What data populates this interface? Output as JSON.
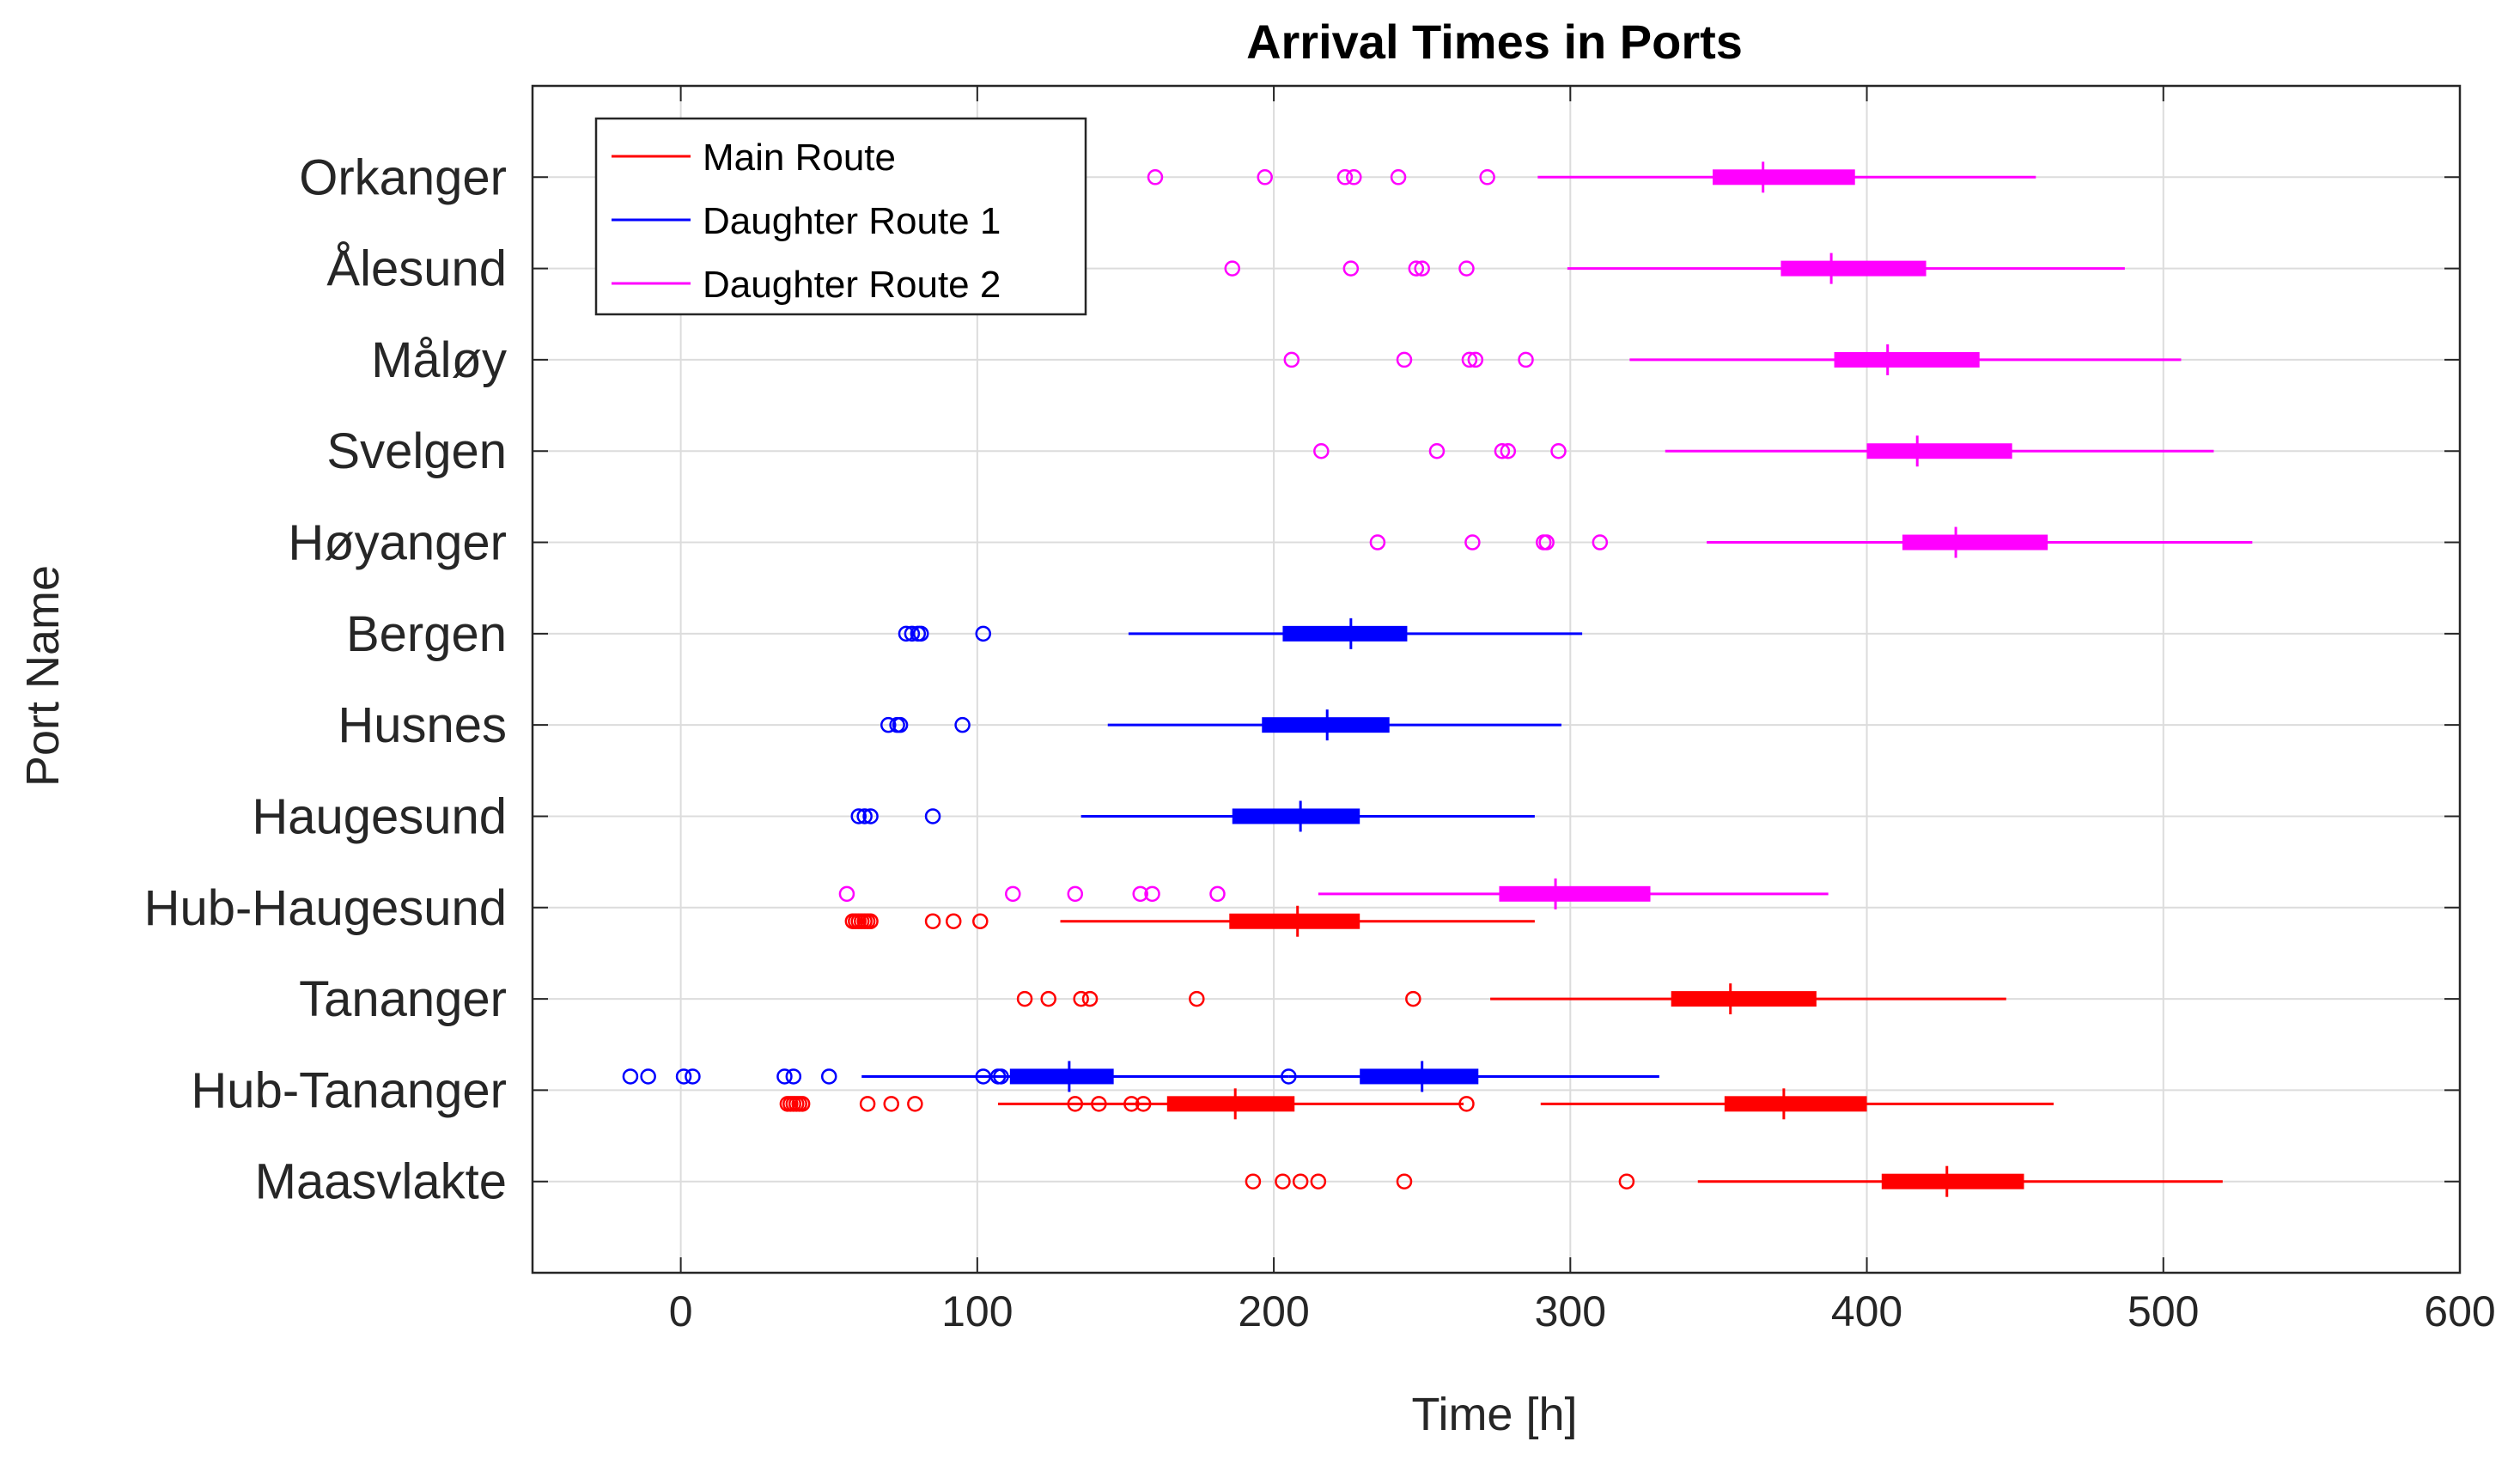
{
  "chart_data": {
    "type": "boxplot-horizontal",
    "title": "Arrival Times in Ports",
    "xlabel": "Time [h]",
    "ylabel": "Port Name",
    "xlim": [
      -50,
      600
    ],
    "xticks": [
      0,
      100,
      200,
      300,
      400,
      500,
      600
    ],
    "grid": true,
    "legend_position": "top-left",
    "categories": [
      "Orkanger",
      "Ålesund",
      "Måløy",
      "Svelgen",
      "Høyanger",
      "Bergen",
      "Husnes",
      "Haugesund",
      "Hub-Haugesund",
      "Tananger",
      "Hub-Tananger",
      "Maasvlakte"
    ],
    "series": [
      {
        "name": "Main Route",
        "color": "#ff0000",
        "boxes": [
          {
            "category": "Hub-Haugesund",
            "offset": 0.15,
            "whisker_low": 128,
            "q1": 185,
            "median": 208,
            "q3": 229,
            "whisker_high": 288,
            "outliers": [
              58,
              59,
              60,
              61,
              62,
              63,
              64,
              85,
              92,
              101
            ]
          },
          {
            "category": "Tananger",
            "offset": 0,
            "whisker_low": 273,
            "q1": 334,
            "median": 354,
            "q3": 383,
            "whisker_high": 447,
            "outliers": [
              116,
              124,
              135,
              138,
              174,
              247
            ]
          },
          {
            "category": "Hub-Tananger",
            "offset": 0.15,
            "whisker_low": 107,
            "q1": 164,
            "median": 187,
            "q3": 207,
            "whisker_high": 264,
            "outliers": [
              36,
              37,
              38,
              39,
              40,
              41,
              63,
              71,
              79,
              133,
              141,
              152,
              156,
              265
            ]
          },
          {
            "category": "Hub-Tananger",
            "offset": 0.15,
            "whisker_low": 290,
            "q1": 352,
            "median": 372,
            "q3": 400,
            "whisker_high": 463,
            "outliers": []
          },
          {
            "category": "Maasvlakte",
            "offset": 0,
            "whisker_low": 343,
            "q1": 405,
            "median": 427,
            "q3": 453,
            "whisker_high": 520,
            "outliers": [
              193,
              203,
              209,
              215,
              244,
              319
            ]
          }
        ]
      },
      {
        "name": "Daughter Route 1",
        "color": "#0000ff",
        "boxes": [
          {
            "category": "Bergen",
            "offset": 0,
            "whisker_low": 151,
            "q1": 203,
            "median": 226,
            "q3": 245,
            "whisker_high": 304,
            "outliers": [
              76,
              78,
              80,
              81,
              102
            ]
          },
          {
            "category": "Husnes",
            "offset": 0,
            "whisker_low": 144,
            "q1": 196,
            "median": 218,
            "q3": 239,
            "whisker_high": 297,
            "outliers": [
              70,
              73,
              74,
              95
            ]
          },
          {
            "category": "Haugesund",
            "offset": 0,
            "whisker_low": 135,
            "q1": 186,
            "median": 209,
            "q3": 229,
            "whisker_high": 288,
            "outliers": [
              60,
              62,
              64,
              85
            ]
          },
          {
            "category": "Hub-Tananger",
            "offset": -0.15,
            "whisker_low": 61,
            "q1": 111,
            "median": 131,
            "q3": 146,
            "whisker_high": 205,
            "outliers": [
              -17,
              -11,
              1,
              4,
              35,
              38,
              50,
              102,
              107,
              108,
              205
            ]
          },
          {
            "category": "Hub-Tananger",
            "offset": -0.15,
            "whisker_low": 205,
            "q1": 229,
            "median": 250,
            "q3": 269,
            "whisker_high": 330,
            "outliers": []
          }
        ]
      },
      {
        "name": "Daughter Route 2",
        "color": "#ff00ff",
        "boxes": [
          {
            "category": "Orkanger",
            "offset": 0,
            "whisker_low": 289,
            "q1": 348,
            "median": 365,
            "q3": 396,
            "whisker_high": 457,
            "outliers": [
              160,
              197,
              224,
              227,
              242,
              272
            ]
          },
          {
            "category": "Ålesund",
            "offset": 0,
            "whisker_low": 299,
            "q1": 371,
            "median": 388,
            "q3": 420,
            "whisker_high": 487,
            "outliers": [
              186,
              226,
              248,
              250,
              265
            ]
          },
          {
            "category": "Måløy",
            "offset": 0,
            "whisker_low": 320,
            "q1": 389,
            "median": 407,
            "q3": 438,
            "whisker_high": 506,
            "outliers": [
              206,
              244,
              266,
              268,
              285
            ]
          },
          {
            "category": "Svelgen",
            "offset": 0,
            "whisker_low": 332,
            "q1": 400,
            "median": 417,
            "q3": 449,
            "whisker_high": 517,
            "outliers": [
              216,
              255,
              277,
              279,
              296
            ]
          },
          {
            "category": "Høyanger",
            "offset": 0,
            "whisker_low": 346,
            "q1": 412,
            "median": 430,
            "q3": 461,
            "whisker_high": 530,
            "outliers": [
              235,
              267,
              291,
              292,
              310
            ]
          },
          {
            "category": "Hub-Haugesund",
            "offset": -0.15,
            "whisker_low": 215,
            "q1": 276,
            "median": 295,
            "q3": 327,
            "whisker_high": 387,
            "outliers": [
              56,
              112,
              133,
              155,
              159,
              181
            ]
          }
        ]
      }
    ],
    "legend": [
      "Main Route",
      "Daughter Route 1",
      "Daughter Route 2"
    ]
  }
}
